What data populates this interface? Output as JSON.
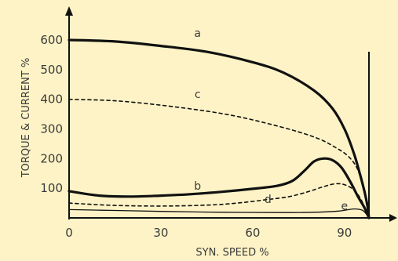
{
  "chart_data": {
    "type": "line",
    "ylabel": "TORQUE & CURRENT %",
    "xlabel": "SYN. SPEED %",
    "origin_label": "0",
    "xlim": [
      0,
      103
    ],
    "ylim": [
      0,
      680
    ],
    "x_ticks": [
      "30",
      "60",
      "90"
    ],
    "y_ticks": [
      "100",
      "200",
      "300",
      "400",
      "500",
      "600"
    ],
    "grid": false,
    "sync_line_x": 98,
    "series": [
      {
        "name": "a",
        "label_at": [
          42,
          610
        ],
        "style": "thick",
        "points": [
          [
            0,
            600
          ],
          [
            15,
            595
          ],
          [
            30,
            580
          ],
          [
            45,
            560
          ],
          [
            60,
            525
          ],
          [
            70,
            490
          ],
          [
            80,
            430
          ],
          [
            86,
            370
          ],
          [
            90,
            300
          ],
          [
            93,
            220
          ],
          [
            95,
            150
          ],
          [
            96.5,
            90
          ],
          [
            97.5,
            40
          ],
          [
            98,
            0
          ]
        ]
      },
      {
        "name": "b",
        "label_at": [
          42,
          95
        ],
        "style": "thick",
        "points": [
          [
            0,
            90
          ],
          [
            10,
            75
          ],
          [
            20,
            72
          ],
          [
            30,
            75
          ],
          [
            40,
            80
          ],
          [
            50,
            88
          ],
          [
            60,
            98
          ],
          [
            68,
            108
          ],
          [
            73,
            125
          ],
          [
            77,
            160
          ],
          [
            80,
            190
          ],
          [
            83,
            200
          ],
          [
            86,
            195
          ],
          [
            89,
            170
          ],
          [
            92,
            120
          ],
          [
            94.5,
            70
          ],
          [
            96.5,
            35
          ],
          [
            98,
            0
          ]
        ]
      },
      {
        "name": "c",
        "label_at": [
          42,
          405
        ],
        "style": "dashed",
        "points": [
          [
            0,
            400
          ],
          [
            15,
            395
          ],
          [
            30,
            380
          ],
          [
            45,
            360
          ],
          [
            55,
            342
          ],
          [
            65,
            318
          ],
          [
            75,
            290
          ],
          [
            82,
            265
          ],
          [
            87,
            238
          ],
          [
            91,
            210
          ],
          [
            94,
            170
          ],
          [
            96,
            110
          ],
          [
            97.5,
            50
          ],
          [
            98,
            0
          ]
        ]
      },
      {
        "name": "d",
        "label_at": [
          65,
          50
        ],
        "style": "dashed",
        "points": [
          [
            0,
            50
          ],
          [
            15,
            42
          ],
          [
            30,
            40
          ],
          [
            45,
            43
          ],
          [
            55,
            50
          ],
          [
            65,
            62
          ],
          [
            72,
            72
          ],
          [
            78,
            88
          ],
          [
            83,
            105
          ],
          [
            87,
            115
          ],
          [
            90,
            112
          ],
          [
            93,
            95
          ],
          [
            95.5,
            60
          ],
          [
            98,
            0
          ]
        ]
      },
      {
        "name": "e",
        "label_at": [
          90,
          28
        ],
        "style": "thin",
        "points": [
          [
            0,
            28
          ],
          [
            15,
            25
          ],
          [
            30,
            22
          ],
          [
            50,
            19
          ],
          [
            70,
            18
          ],
          [
            80,
            19
          ],
          [
            88,
            23
          ],
          [
            93,
            30
          ],
          [
            96,
            25
          ],
          [
            98,
            0
          ]
        ]
      }
    ]
  }
}
